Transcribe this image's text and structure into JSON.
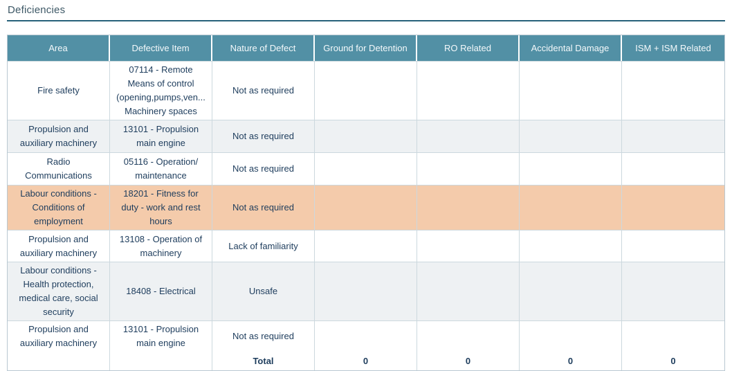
{
  "page": {
    "title": "Deficiencies"
  },
  "table": {
    "columns": [
      "Area",
      "Defective Item",
      "Nature of Defect",
      "Ground for Detention",
      "RO Related",
      "Accidental Damage",
      "ISM + ISM Related"
    ],
    "rows": [
      {
        "area": "Fire safety",
        "defective_item": "07114 - Remote\nMeans of control\n(opening,pumps,ven...\nMachinery spaces",
        "nature_of_defect": "Not as required",
        "ground_for_detention": "",
        "ro_related": "",
        "accidental_damage": "",
        "ism_related": "",
        "highlighted": false
      },
      {
        "area": "Propulsion and\nauxiliary machinery",
        "defective_item": "13101 - Propulsion\nmain engine",
        "nature_of_defect": "Not as required",
        "ground_for_detention": "",
        "ro_related": "",
        "accidental_damage": "",
        "ism_related": "",
        "highlighted": false
      },
      {
        "area": "Radio\nCommunications",
        "defective_item": "05116 - Operation/\nmaintenance",
        "nature_of_defect": "Not as required",
        "ground_for_detention": "",
        "ro_related": "",
        "accidental_damage": "",
        "ism_related": "",
        "highlighted": false
      },
      {
        "area": "Labour conditions -\nConditions of\nemployment",
        "defective_item": "18201 - Fitness for\nduty - work and rest\nhours",
        "nature_of_defect": "Not as required",
        "ground_for_detention": "",
        "ro_related": "",
        "accidental_damage": "",
        "ism_related": "",
        "highlighted": true
      },
      {
        "area": "Propulsion and\nauxiliary machinery",
        "defective_item": "13108 - Operation of\nmachinery",
        "nature_of_defect": "Lack of familiarity",
        "ground_for_detention": "",
        "ro_related": "",
        "accidental_damage": "",
        "ism_related": "",
        "highlighted": false
      },
      {
        "area": "Labour conditions -\nHealth protection,\nmedical care, social\nsecurity",
        "defective_item": "18408 - Electrical",
        "nature_of_defect": "Unsafe",
        "ground_for_detention": "",
        "ro_related": "",
        "accidental_damage": "",
        "ism_related": "",
        "highlighted": false
      },
      {
        "area": "Propulsion and\nauxiliary machinery",
        "defective_item": "13101 - Propulsion\nmain engine",
        "nature_of_defect": "Not as required",
        "ground_for_detention": "",
        "ro_related": "",
        "accidental_damage": "",
        "ism_related": "",
        "highlighted": false
      }
    ],
    "total": {
      "label": "Total",
      "ground_for_detention": "0",
      "ro_related": "0",
      "accidental_damage": "0",
      "ism_related": "0"
    }
  },
  "colors": {
    "header_bg": "#5290a5",
    "header_text": "#f4f9fb",
    "row_alt_bg": "#eef1f3",
    "highlight_bg": "#f4cbab",
    "body_text": "#1d3c5c",
    "title_text": "#3d5866",
    "rule": "#26617a",
    "border": "#b9c8d1",
    "grid": "#ccd8de"
  }
}
